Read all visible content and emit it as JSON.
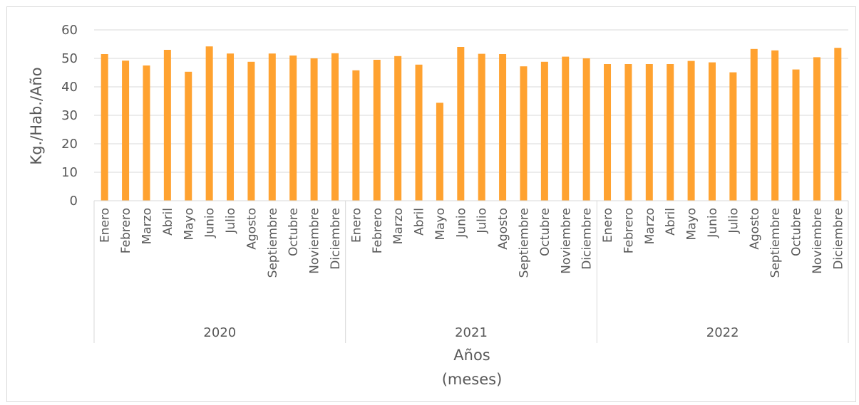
{
  "chart_data": {
    "type": "bar",
    "ylabel": "Kg./Hab./Año",
    "xlabel_line1": "Años",
    "xlabel_line2": "(meses)",
    "ylim": [
      0,
      60
    ],
    "yticks": [
      0,
      10,
      20,
      30,
      40,
      50,
      60
    ],
    "grid": true,
    "bar_color": "#FFA230",
    "groups": [
      {
        "label": "2020",
        "categories": [
          "Enero",
          "Febrero",
          "Marzo",
          "Abril",
          "Mayo",
          "Junio",
          "Julio",
          "Agosto",
          "Septiembre",
          "Octubre",
          "Noviembre",
          "Diciembre"
        ],
        "values": [
          51.5,
          49.2,
          47.5,
          53,
          45.3,
          54.2,
          51.7,
          48.8,
          51.7,
          51,
          50,
          51.8
        ]
      },
      {
        "label": "2021",
        "categories": [
          "Enero",
          "Febrero",
          "Marzo",
          "Abril",
          "Mayo",
          "Junio",
          "Julio",
          "Agosto",
          "Septiembre",
          "Octubre",
          "Noviembre",
          "Diciembre"
        ],
        "values": [
          45.8,
          49.5,
          50.8,
          47.8,
          34.4,
          54,
          51.6,
          51.5,
          47.2,
          48.8,
          50.6,
          50
        ]
      },
      {
        "label": "2022",
        "categories": [
          "Enero",
          "Febrero",
          "Marzo",
          "Abril",
          "Mayo",
          "Junio",
          "Julio",
          "Agosto",
          "Septiembre",
          "Octubre",
          "Noviembre",
          "Diciembre"
        ],
        "values": [
          48,
          48,
          48,
          48,
          49.1,
          48.6,
          45.1,
          53.3,
          52.8,
          46.1,
          50.4,
          53.7
        ]
      }
    ]
  }
}
